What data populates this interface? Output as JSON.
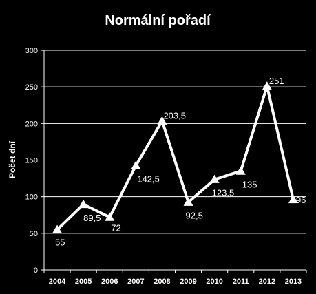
{
  "chart_data": {
    "type": "line",
    "title": "Normální pořadí",
    "ylabel": "Počet dní",
    "xlabel": "",
    "categories": [
      "2004",
      "2005",
      "2006",
      "2007",
      "2008",
      "2009",
      "2010",
      "2011",
      "2012",
      "2013"
    ],
    "series": [
      {
        "values": [
          55,
          89.5,
          72,
          142.5,
          203.5,
          92.5,
          123.5,
          135,
          251,
          96
        ],
        "data_labels": [
          "55",
          "89,5",
          "72",
          "142,5",
          "203,5",
          "92,5",
          "123,5",
          "135",
          "251",
          "96"
        ],
        "color": "#ffffff",
        "marker": "triangle"
      }
    ],
    "ylim": [
      0,
      300
    ],
    "yticks": [
      0,
      50,
      100,
      150,
      200,
      250,
      300
    ],
    "ytick_labels": [
      "0",
      "50",
      "100",
      "150",
      "200",
      "250",
      "300"
    ],
    "grid": true,
    "legend": "none",
    "background": "#000000",
    "grid_color": "#ffffff"
  }
}
